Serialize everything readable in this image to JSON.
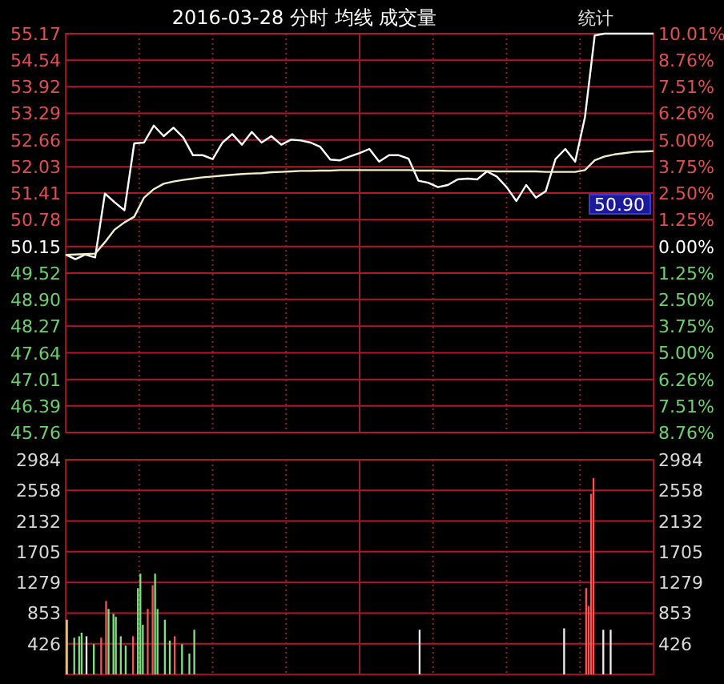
{
  "chart_data": [
    {
      "type": "line",
      "title": "2016-03-28 分时 均线 成交量",
      "annotations": [
        "统计",
        "50.90"
      ],
      "categories": [
        null,
        null,
        null,
        null,
        null,
        null,
        null,
        null,
        null,
        null,
        null,
        null,
        null,
        null,
        null,
        null,
        null,
        null,
        null,
        null,
        null,
        null,
        null,
        null,
        null,
        null,
        null,
        null,
        null,
        null,
        null,
        null,
        null,
        null,
        null,
        null,
        null,
        null,
        null,
        null,
        null,
        null,
        null,
        null,
        null,
        null,
        null,
        null,
        null,
        null,
        null,
        null,
        null,
        null,
        null,
        null,
        null,
        null,
        null,
        null,
        null
      ],
      "ylim": [
        45.76,
        55.17
      ],
      "yticks": [
        55.17,
        54.54,
        53.92,
        53.29,
        52.66,
        52.03,
        51.41,
        50.78,
        50.15,
        49.52,
        {
          "value": 48.9,
          "label": "48.90"
        },
        48.27,
        47.64,
        47.01,
        46.39,
        45.76
      ],
      "y2lim": [
        -8.76,
        10.01
      ],
      "y2ticks": [
        {
          "value": 10.01,
          "label": "10.01%"
        },
        {
          "value": 8.76,
          "label": "8.76%"
        },
        {
          "value": 7.51,
          "label": "7.51%"
        },
        {
          "value": 6.26,
          "label": "6.26%"
        },
        {
          "value": 5.0,
          "label": "5.00%"
        },
        {
          "value": 3.75,
          "label": "3.75%"
        },
        {
          "value": 2.5,
          "label": "2.50%"
        },
        {
          "value": 1.25,
          "label": "1.25%"
        },
        {
          "value": 0,
          "label": "0.00%"
        },
        {
          "value": -1.25,
          "label": "1.25%"
        },
        {
          "value": -2.5,
          "label": "2.50%"
        },
        {
          "value": -3.75,
          "label": "3.75%"
        },
        {
          "value": -5.0,
          "label": "5.00%"
        },
        {
          "value": -6.26,
          "label": "6.26%"
        },
        {
          "value": -7.51,
          "label": "7.51%"
        },
        {
          "value": -8.76,
          "label": "8.76%"
        }
      ],
      "tick_labels": "y",
      "grid": true,
      "series": [
        {
          "color": "#ffffff",
          "values": [
            49.96,
            49.85,
            49.96,
            49.89,
            51.4,
            51.19,
            51.0,
            52.58,
            52.6,
            53.0,
            52.75,
            52.95,
            52.72,
            52.3,
            52.3,
            52.21,
            52.6,
            52.8,
            52.55,
            52.85,
            52.6,
            52.75,
            52.55,
            52.67,
            52.65,
            52.6,
            52.5,
            52.2,
            52.18,
            52.27,
            52.35,
            52.45,
            52.15,
            52.3,
            52.3,
            52.22,
            51.7,
            51.65,
            51.55,
            51.6,
            51.73,
            51.75,
            51.73,
            51.92,
            51.8,
            51.55,
            51.22,
            51.6,
            51.3,
            51.45,
            52.21,
            52.45,
            52.15,
            53.2,
            55.13,
            55.17,
            55.17,
            55.17,
            55.17,
            55.17,
            55.17
          ]
        },
        {
          "color": "#f0f0c8",
          "values": [
            49.95,
            49.96,
            49.97,
            49.98,
            50.25,
            50.55,
            50.72,
            50.85,
            51.3,
            51.5,
            51.63,
            51.68,
            51.72,
            51.75,
            51.78,
            51.8,
            51.82,
            51.84,
            51.86,
            51.87,
            51.88,
            51.9,
            51.91,
            51.92,
            51.93,
            51.93,
            51.94,
            51.94,
            51.95,
            51.95,
            51.95,
            51.95,
            51.95,
            51.95,
            51.95,
            51.95,
            51.94,
            51.94,
            51.94,
            51.93,
            51.93,
            51.93,
            51.93,
            51.93,
            51.92,
            51.92,
            51.92,
            51.92,
            51.92,
            51.91,
            51.91,
            51.91,
            51.91,
            51.95,
            52.18,
            52.27,
            52.32,
            52.35,
            52.38,
            52.39,
            52.4
          ]
        }
      ]
    },
    {
      "type": "bar",
      "categories": [
        null,
        null,
        null,
        null,
        null,
        null,
        null,
        null,
        null,
        null,
        null,
        null,
        null,
        null,
        null,
        null,
        null,
        null,
        null,
        null,
        null,
        null,
        null,
        null,
        null,
        null,
        null,
        null,
        null,
        null,
        null,
        null,
        null,
        null,
        null,
        null,
        null,
        null,
        null,
        null,
        null,
        null,
        null,
        null,
        null,
        null,
        null,
        null,
        null,
        null,
        null,
        null,
        null,
        null,
        null,
        null,
        null,
        null,
        null,
        null,
        null,
        null,
        null,
        null,
        null,
        null,
        null,
        null,
        null,
        null,
        null,
        null,
        null,
        null,
        null,
        null,
        null,
        null,
        null,
        null,
        null,
        null,
        null,
        null,
        null,
        null,
        null,
        null,
        null,
        null,
        null,
        null,
        null,
        null,
        null,
        null,
        null,
        null,
        null,
        null,
        null,
        null,
        null,
        null,
        null,
        null,
        null,
        null,
        null,
        null,
        null,
        null,
        null,
        null,
        null,
        null,
        null,
        null,
        null,
        null,
        null,
        null,
        null,
        null,
        null,
        null,
        null,
        null,
        null,
        null,
        null,
        null,
        null,
        null,
        null,
        null,
        null,
        null,
        null,
        null,
        null,
        null,
        null,
        null,
        null,
        null,
        null,
        null,
        null,
        null,
        null,
        null,
        null,
        null,
        null,
        null,
        null,
        null,
        null,
        null,
        null,
        null,
        null,
        null,
        null,
        null,
        null,
        null,
        null,
        null,
        null,
        null,
        null,
        null,
        null,
        null,
        null,
        null,
        null,
        null,
        null,
        null,
        null,
        null,
        null,
        null,
        null,
        null,
        null,
        null,
        null,
        null,
        null,
        null,
        null,
        null,
        null,
        null,
        null,
        null,
        null,
        null,
        null,
        null,
        null,
        null,
        null,
        null,
        null,
        null,
        null,
        null,
        null,
        null,
        null,
        null,
        null,
        null,
        null,
        null,
        null,
        null,
        null,
        null,
        null,
        null,
        null,
        null,
        null,
        null,
        null,
        null,
        null,
        null,
        null,
        null,
        null,
        null,
        null,
        null
      ],
      "ylim": [
        0,
        2984
      ],
      "yticks": [
        2984,
        2558,
        2132,
        1705,
        1279,
        853,
        426
      ],
      "y2lim": [
        0,
        2984
      ],
      "y2ticks": [
        2984,
        2558,
        2132,
        1705,
        1279,
        853,
        426
      ],
      "tick_labels": "y",
      "grid": true,
      "series": [
        {
          "values": [
            760,
            null,
            null,
            510,
            null,
            530,
            580,
            null,
            530,
            null,
            null,
            420,
            null,
            null,
            510,
            null,
            1020,
            910,
            null,
            840,
            800,
            null,
            530,
            null,
            400,
            null,
            null,
            530,
            null,
            1200,
            1400,
            690,
            null,
            910,
            null,
            1240,
            1400,
            910,
            null,
            null,
            760,
            null,
            470,
            null,
            530,
            null,
            null,
            420,
            null,
            null,
            290,
            null,
            620,
            null,
            null,
            null,
            null,
            null,
            null,
            null,
            null,
            null,
            null,
            null,
            null,
            null,
            null,
            null,
            null,
            null,
            null,
            null,
            null,
            null,
            null,
            null,
            null,
            null,
            null,
            null,
            null,
            null,
            null,
            null,
            null,
            null,
            null,
            null,
            null,
            null,
            null,
            null,
            null,
            null,
            null,
            null,
            null,
            null,
            null,
            null,
            null,
            null,
            null,
            null,
            null,
            null,
            null,
            null,
            null,
            null,
            null,
            null,
            null,
            null,
            null,
            null,
            null,
            null,
            null,
            null,
            null,
            null,
            null,
            null,
            null,
            null,
            null,
            null,
            null,
            null,
            null,
            null,
            null,
            null,
            null,
            null,
            null,
            null,
            null,
            null,
            null,
            null,
            null,
            null,
            620,
            null,
            null,
            null,
            null,
            null,
            null,
            null,
            null,
            null,
            null,
            null,
            null,
            null,
            null,
            null,
            null,
            null,
            null,
            null,
            null,
            null,
            null,
            null,
            null,
            null,
            null,
            null,
            null,
            null,
            null,
            null,
            null,
            null,
            null,
            null,
            null,
            null,
            null,
            null,
            null,
            null,
            null,
            null,
            null,
            null,
            null,
            null,
            null,
            null,
            null,
            null,
            null,
            null,
            null,
            null,
            null,
            null,
            null,
            640,
            null,
            null,
            null,
            null,
            null,
            null,
            null,
            null,
            1200,
            950,
            2510,
            2730,
            null,
            null,
            null,
            620,
            null,
            null,
            620,
            null,
            null,
            null,
            null,
            null,
            null,
            null,
            null,
            null,
            null,
            null,
            null,
            null,
            null,
            null,
            null,
            null
          ],
          "colors": [
            "#f0e68c",
            null,
            null,
            "#7ee07e",
            null,
            "#7ee07e",
            "#7ee07e",
            null,
            "#f0f0f0",
            null,
            null,
            "#7ee07e",
            null,
            null,
            "#ff5050",
            null,
            "#ff5050",
            "#7ee07e",
            null,
            "#7ee07e",
            "#7ee07e",
            null,
            "#7ee07e",
            null,
            "#7ee07e",
            null,
            null,
            "#ff5050",
            null,
            "#7ee07e",
            "#7ee07e",
            "#7ee07e",
            null,
            "#ff5050",
            null,
            "#ff5050",
            "#7ee07e",
            "#7ee07e",
            null,
            null,
            "#7ee07e",
            null,
            "#7ee07e",
            null,
            "#ff5050",
            null,
            null,
            "#7ee07e",
            null,
            null,
            "#7ee07e",
            null,
            "#7ee07e",
            null,
            null,
            null,
            null,
            null,
            null,
            null,
            null,
            null,
            null,
            null,
            null,
            null,
            null,
            null,
            null,
            null,
            null,
            null,
            null,
            null,
            null,
            null,
            null,
            null,
            null,
            null,
            null,
            null,
            null,
            null,
            null,
            null,
            null,
            null,
            null,
            null,
            null,
            null,
            null,
            null,
            null,
            null,
            null,
            null,
            null,
            null,
            null,
            null,
            null,
            null,
            null,
            null,
            null,
            null,
            null,
            null,
            null,
            null,
            null,
            null,
            null,
            null,
            null,
            null,
            null,
            null,
            null,
            null,
            null,
            null,
            null,
            null,
            null,
            null,
            null,
            null,
            null,
            null,
            null,
            null,
            null,
            null,
            null,
            null,
            null,
            null,
            null,
            null,
            null,
            null,
            "#f0f0f0",
            null,
            null,
            null,
            null,
            null,
            null,
            null,
            null,
            null,
            null,
            null,
            null,
            null,
            null,
            null,
            null,
            null,
            null,
            null,
            null,
            null,
            null,
            null,
            null,
            null,
            null,
            null,
            null,
            null,
            null,
            null,
            null,
            null,
            null,
            null,
            null,
            null,
            null,
            null,
            null,
            null,
            null,
            null,
            null,
            null,
            null,
            null,
            null,
            null,
            null,
            null,
            null,
            null,
            null,
            null,
            null,
            null,
            null,
            "#f0f0f0",
            null,
            null,
            null,
            null,
            null,
            null,
            null,
            null,
            "#ff5050",
            "#ff5050",
            "#ff5050",
            "#ff5050",
            null,
            null,
            null,
            "#f0f0f0",
            null,
            null,
            "#f0f0f0",
            null,
            null,
            null,
            null,
            null,
            null,
            null,
            null,
            null,
            null,
            null,
            null,
            null,
            null,
            null,
            null,
            null
          ]
        }
      ]
    }
  ]
}
